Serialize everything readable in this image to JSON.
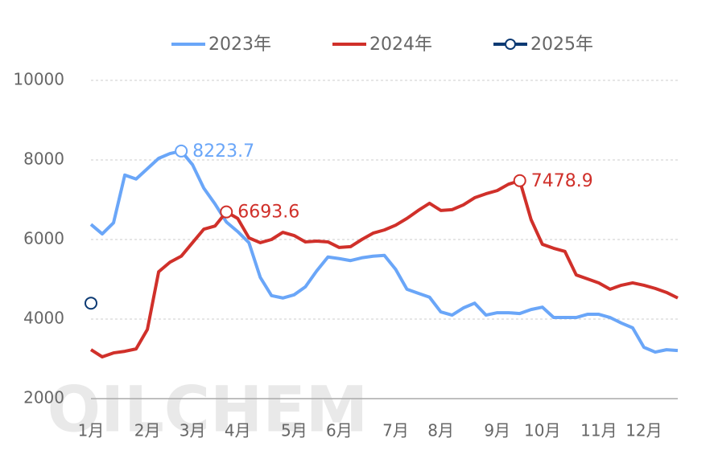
{
  "chart_data": {
    "type": "line",
    "watermark": "OILCHEM",
    "categories": [
      "1月",
      null,
      null,
      null,
      null,
      "2月",
      null,
      null,
      null,
      "3月",
      null,
      null,
      null,
      "4月",
      null,
      null,
      null,
      null,
      "5月",
      null,
      null,
      null,
      "6月",
      null,
      null,
      null,
      null,
      "7月",
      null,
      null,
      null,
      "8月",
      null,
      null,
      null,
      null,
      "9月",
      null,
      null,
      null,
      "10月",
      null,
      null,
      null,
      null,
      "11月",
      null,
      null,
      null,
      "12月",
      null,
      null,
      null
    ],
    "series": [
      {
        "name": "2023年",
        "color": "#6aa6f8",
        "values": [
          6380,
          6140,
          6420,
          7620,
          7520,
          7780,
          8040,
          8160,
          8223.7,
          7880,
          7290,
          6890,
          6440,
          6200,
          5920,
          5050,
          4590,
          4530,
          4610,
          4810,
          5210,
          5560,
          5520,
          5470,
          5540,
          5580,
          5600,
          5250,
          4750,
          4650,
          4550,
          4180,
          4100,
          4280,
          4400,
          4100,
          4160,
          4160,
          4140,
          4240,
          4300,
          4040,
          4040,
          4040,
          4120,
          4120,
          4040,
          3900,
          3780,
          3290,
          3170,
          3230,
          3210
        ],
        "value_labels": [
          null,
          null,
          null,
          null,
          null,
          null,
          null,
          null,
          "8223.7",
          null,
          null,
          null,
          null,
          null,
          null,
          null,
          null,
          null,
          null,
          null,
          null,
          null,
          null,
          null,
          null,
          null,
          null,
          null,
          null,
          null,
          null,
          null,
          null,
          null,
          null,
          null,
          null,
          null,
          null,
          null,
          null,
          null,
          null,
          null,
          null,
          null,
          null,
          null,
          null,
          null,
          null,
          null,
          null
        ]
      },
      {
        "name": "2024年",
        "color": "#d0302a",
        "values": [
          3230,
          3050,
          3150,
          3190,
          3250,
          3740,
          5190,
          5430,
          5580,
          5920,
          6260,
          6340,
          6693.6,
          6530,
          6040,
          5920,
          6000,
          6180,
          6100,
          5940,
          5960,
          5940,
          5800,
          5820,
          6000,
          6160,
          6240,
          6360,
          6530,
          6730,
          6910,
          6730,
          6750,
          6870,
          7050,
          7150,
          7230,
          7390,
          7478.9,
          6500,
          5880,
          5780,
          5700,
          5110,
          5010,
          4910,
          4750,
          4850,
          4910,
          4850,
          4770,
          4670,
          4530
        ],
        "value_labels": [
          null,
          null,
          null,
          null,
          null,
          null,
          null,
          null,
          null,
          null,
          null,
          null,
          "6693.6",
          null,
          null,
          null,
          null,
          null,
          null,
          null,
          null,
          null,
          null,
          null,
          null,
          null,
          null,
          null,
          null,
          null,
          null,
          null,
          null,
          null,
          null,
          null,
          null,
          null,
          "7478.9",
          null,
          null,
          null,
          null,
          null,
          null,
          null,
          null,
          null,
          null,
          null,
          null,
          null,
          null
        ]
      },
      {
        "name": "2025年",
        "color": "#0c3a73",
        "marker": true,
        "values": [
          4400,
          null,
          null,
          null,
          null,
          null,
          null,
          null,
          null,
          null,
          null,
          null,
          null,
          null,
          null,
          null,
          null,
          null,
          null,
          null,
          null,
          null,
          null,
          null,
          null,
          null,
          null,
          null,
          null,
          null,
          null,
          null,
          null,
          null,
          null,
          null,
          null,
          null,
          null,
          null,
          null,
          null,
          null,
          null,
          null,
          null,
          null,
          null,
          null,
          null,
          null,
          null,
          null
        ]
      }
    ],
    "ylim": [
      2000,
      10000
    ],
    "yticks": [
      2000,
      4000,
      6000,
      8000,
      10000
    ],
    "grid": true,
    "legend": "top"
  }
}
